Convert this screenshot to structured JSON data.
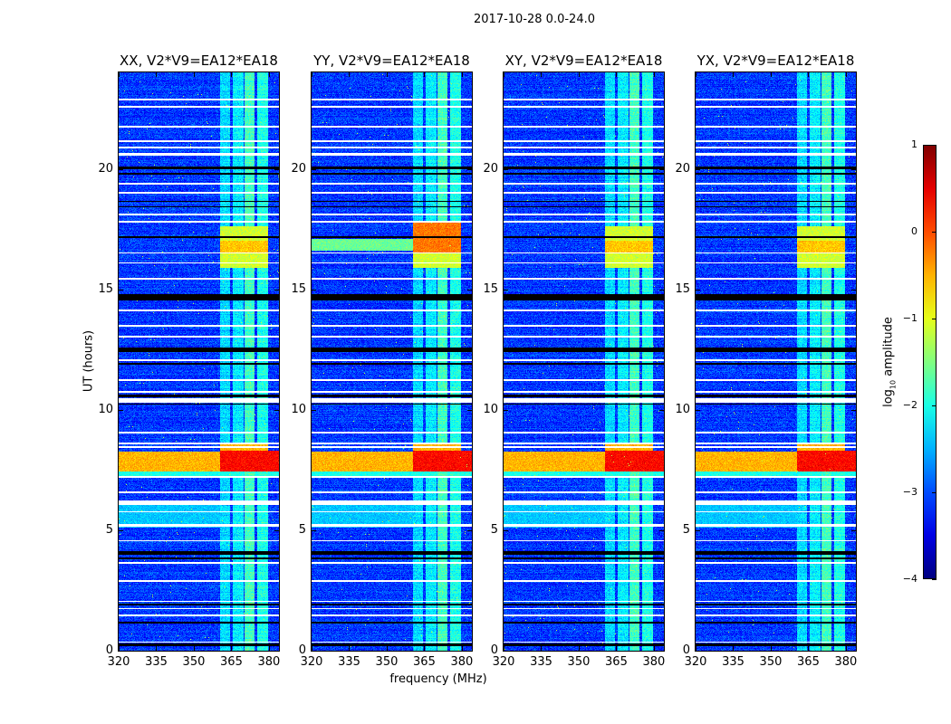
{
  "chart_data": {
    "type": "heatmap",
    "title": "2017-10-28 0.0-24.0",
    "xlabel": "frequency (MHz)",
    "ylabel": "UT (hours)",
    "xlim": [
      320,
      384
    ],
    "ylim": [
      0,
      24
    ],
    "x_ticks": [
      320,
      335,
      350,
      365,
      380
    ],
    "y_ticks": [
      0,
      5,
      10,
      15,
      20
    ],
    "colormap": "jet",
    "colorbar": {
      "label": "log10 amplitude",
      "label_main": "log",
      "label_sub": "10",
      "label_rest": " amplitude",
      "range": [
        -4,
        1
      ],
      "ticks": [
        1,
        0,
        -1,
        -2,
        -3,
        -4
      ],
      "tick_labels": [
        "1",
        "0",
        "−1",
        "−2",
        "−3",
        "−4"
      ]
    },
    "panels": [
      {
        "title": "XX, V2*V9=EA12*EA18",
        "pol": "XX"
      },
      {
        "title": "YY, V2*V9=EA12*EA18",
        "pol": "YY"
      },
      {
        "title": "XY, V2*V9=EA12*EA18",
        "pol": "XY"
      },
      {
        "title": "YX, V2*V9=EA12*EA18",
        "pol": "YX"
      }
    ],
    "background_level": -3.1,
    "band_columns_mhz": [
      [
        360.4,
        364.6
      ],
      [
        365.4,
        369.8
      ],
      [
        370.2,
        374.4
      ],
      [
        375.5,
        379.5
      ]
    ],
    "band_levels": [
      -2.3,
      -2.2,
      -1.8,
      -2.0
    ],
    "features": [
      {
        "hours": [
          7.2,
          7.45
        ],
        "mhz": [
          320,
          384
        ],
        "level": -2.0,
        "panels": [
          0,
          1,
          2,
          3
        ]
      },
      {
        "hours": [
          7.45,
          8.25
        ],
        "mhz": [
          320,
          360.4
        ],
        "level": -0.5,
        "panels": [
          0,
          1,
          2,
          3
        ]
      },
      {
        "hours": [
          7.45,
          8.3
        ],
        "mhz": [
          360.4,
          384
        ],
        "level": 0.35,
        "panels": [
          0,
          1,
          2,
          3
        ]
      },
      {
        "hours": [
          8.3,
          8.65
        ],
        "mhz": [
          360.4,
          379.5
        ],
        "level": -0.5,
        "panels": [
          0,
          1,
          2,
          3
        ]
      },
      {
        "hours": [
          5.1,
          6.1
        ],
        "mhz": [
          320,
          360.4
        ],
        "level": -2.4,
        "panels": [
          0,
          1,
          2,
          3
        ]
      },
      {
        "hours": [
          15.9,
          17.6
        ],
        "mhz": [
          360.4,
          379.5
        ],
        "level": -1.1,
        "panels": [
          0,
          1,
          2,
          3
        ]
      },
      {
        "hours": [
          16.5,
          17.0
        ],
        "mhz": [
          360.4,
          379.5
        ],
        "level": -0.6,
        "panels": [
          0,
          1,
          2,
          3
        ]
      },
      {
        "hours": [
          16.6,
          17.1
        ],
        "mhz": [
          320,
          360.4
        ],
        "level": -1.6,
        "panels": [
          1
        ]
      },
      {
        "hours": [
          16.5,
          17.8
        ],
        "mhz": [
          360.4,
          379.5
        ],
        "level": -0.2,
        "panels": [
          1
        ]
      }
    ],
    "flagged_rows": [
      {
        "hours": [
          22.85,
          22.9
        ],
        "color": "#ffffff"
      },
      {
        "hours": [
          22.55,
          22.6
        ],
        "color": "#ffffff"
      },
      {
        "hours": [
          21.72,
          21.77
        ],
        "color": "#ffffff"
      },
      {
        "hours": [
          21.12,
          21.17
        ],
        "color": "#ffffff"
      },
      {
        "hours": [
          20.86,
          20.91
        ],
        "color": "#ffffff"
      },
      {
        "hours": [
          20.55,
          20.65
        ],
        "color": "#ffffff"
      },
      {
        "hours": [
          20.0,
          20.1
        ],
        "color": "#000000"
      },
      {
        "hours": [
          19.75,
          19.82
        ],
        "color": "#000000"
      },
      {
        "hours": [
          19.36,
          19.41
        ],
        "color": "#ffffff"
      },
      {
        "hours": [
          18.98,
          19.03
        ],
        "color": "#ffffff"
      },
      {
        "hours": [
          18.62,
          18.67
        ],
        "color": "#000000"
      },
      {
        "hours": [
          18.4,
          18.46
        ],
        "color": "#000000"
      },
      {
        "hours": [
          18.08,
          18.13
        ],
        "color": "#ffffff"
      },
      {
        "hours": [
          17.78,
          17.83
        ],
        "color": "#ffffff"
      },
      {
        "hours": [
          17.14,
          17.19
        ],
        "color": "#000000"
      },
      {
        "hours": [
          16.47,
          16.52
        ],
        "color": "#ffffff"
      },
      {
        "hours": [
          16.08,
          16.13
        ],
        "color": "#ffffff"
      },
      {
        "hours": [
          15.41,
          15.46
        ],
        "color": "#ffffff"
      },
      {
        "hours": [
          14.55,
          14.8
        ],
        "color": "#000000"
      },
      {
        "hours": [
          14.1,
          14.15
        ],
        "color": "#ffffff"
      },
      {
        "hours": [
          13.46,
          13.51
        ],
        "color": "#ffffff"
      },
      {
        "hours": [
          13.01,
          13.06
        ],
        "color": "#ffffff"
      },
      {
        "hours": [
          12.4,
          12.6
        ],
        "color": "#000000"
      },
      {
        "hours": [
          12.03,
          12.08
        ],
        "color": "#ffffff"
      },
      {
        "hours": [
          11.88,
          11.93
        ],
        "color": "#000000"
      },
      {
        "hours": [
          11.21,
          11.26
        ],
        "color": "#ffffff"
      },
      {
        "hours": [
          10.72,
          10.77
        ],
        "color": "#ffffff"
      },
      {
        "hours": [
          10.5,
          10.62
        ],
        "color": "#000000"
      },
      {
        "hours": [
          10.3,
          10.48
        ],
        "color": "#ffffff"
      },
      {
        "hours": [
          10.2,
          10.26
        ],
        "color": "#000000"
      },
      {
        "hours": [
          9.03,
          9.08
        ],
        "color": "#ffffff"
      },
      {
        "hours": [
          8.58,
          8.63
        ],
        "color": "#ffffff"
      },
      {
        "hours": [
          8.43,
          8.48
        ],
        "color": "#ffffff"
      },
      {
        "hours": [
          7.19,
          7.24
        ],
        "color": "#ffffff"
      },
      {
        "hours": [
          6.55,
          6.6
        ],
        "color": "#ffffff"
      },
      {
        "hours": [
          6.05,
          6.25
        ],
        "color": "#ffffff"
      },
      {
        "hours": [
          5.73,
          5.78
        ],
        "color": "#ffffff"
      },
      {
        "hours": [
          5.15,
          5.25
        ],
        "color": "#ffffff"
      },
      {
        "hours": [
          4.53,
          4.58
        ],
        "color": "#ffffff"
      },
      {
        "hours": [
          4.0,
          4.12
        ],
        "color": "#000000"
      },
      {
        "hours": [
          3.8,
          3.86
        ],
        "color": "#000000"
      },
      {
        "hours": [
          3.62,
          3.67
        ],
        "color": "#ffffff"
      },
      {
        "hours": [
          2.87,
          2.92
        ],
        "color": "#ffffff"
      },
      {
        "hours": [
          2.01,
          2.06
        ],
        "color": "#ffffff"
      },
      {
        "hours": [
          1.88,
          1.94
        ],
        "color": "#000000"
      },
      {
        "hours": [
          1.71,
          1.76
        ],
        "color": "#ffffff"
      },
      {
        "hours": [
          1.44,
          1.49
        ],
        "color": "#ffffff"
      },
      {
        "hours": [
          1.14,
          1.2
        ],
        "color": "#000000"
      },
      {
        "hours": [
          0.32,
          0.37
        ],
        "color": "#ffffff"
      },
      {
        "hours": [
          0.2,
          0.3
        ],
        "color": "#000000"
      }
    ]
  }
}
